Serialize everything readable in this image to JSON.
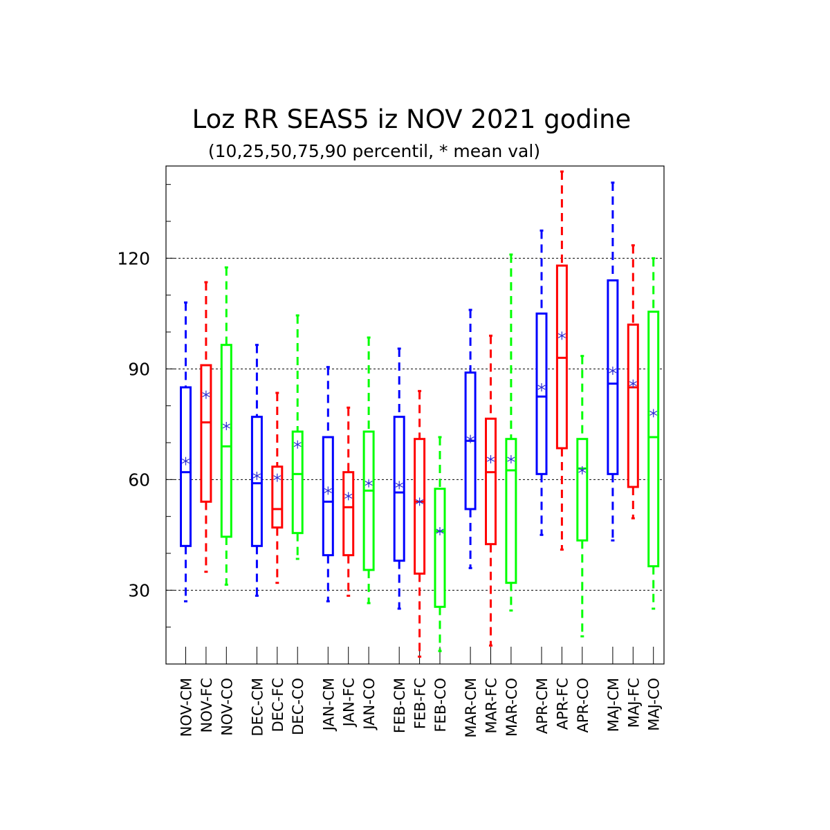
{
  "chart_data": {
    "type": "box",
    "title": "Loz RR SEAS5 iz NOV 2021 godine",
    "subtitle": "(10,25,50,75,90 percentil, * mean val)",
    "xlabel": "",
    "ylabel": "",
    "ylim": [
      10,
      145
    ],
    "yticks": [
      30,
      60,
      90,
      120
    ],
    "ytick_labels": [
      "30",
      "60",
      "90",
      "120"
    ],
    "grid": "horizontal dotted at major ticks",
    "colors": {
      "CM": "#0000ff",
      "FC": "#ff0000",
      "CO": "#00ff00",
      "mean_marker": "#2a2ad0"
    },
    "boxes": [
      {
        "label": "NOV-CM",
        "type": "CM",
        "p10": 27,
        "p25": 42,
        "p50": 62,
        "p75": 85,
        "p90": 108,
        "mean": 65
      },
      {
        "label": "NOV-FC",
        "type": "FC",
        "p10": 35,
        "p25": 54,
        "p50": 75.5,
        "p75": 91,
        "p90": 113.5,
        "mean": 83
      },
      {
        "label": "NOV-CO",
        "type": "CO",
        "p10": 31.5,
        "p25": 44.5,
        "p50": 69,
        "p75": 96.5,
        "p90": 117.5,
        "mean": 74.5
      },
      {
        "label": "DEC-CM",
        "type": "CM",
        "p10": 28.5,
        "p25": 42,
        "p50": 59,
        "p75": 77,
        "p90": 96.5,
        "mean": 61
      },
      {
        "label": "DEC-FC",
        "type": "FC",
        "p10": 32,
        "p25": 47,
        "p50": 52,
        "p75": 63.5,
        "p90": 83.5,
        "mean": 60.5
      },
      {
        "label": "DEC-CO",
        "type": "CO",
        "p10": 38.5,
        "p25": 45.5,
        "p50": 61.5,
        "p75": 73,
        "p90": 104.5,
        "mean": 69.5
      },
      {
        "label": "JAN-CM",
        "type": "CM",
        "p10": 27,
        "p25": 39.5,
        "p50": 54,
        "p75": 71.5,
        "p90": 90.5,
        "mean": 57
      },
      {
        "label": "JAN-FC",
        "type": "FC",
        "p10": 28.5,
        "p25": 39.5,
        "p50": 52.5,
        "p75": 62,
        "p90": 79.5,
        "mean": 55.5
      },
      {
        "label": "JAN-CO",
        "type": "CO",
        "p10": 26.5,
        "p25": 35.5,
        "p50": 57,
        "p75": 73,
        "p90": 98.5,
        "mean": 59
      },
      {
        "label": "FEB-CM",
        "type": "CM",
        "p10": 25,
        "p25": 38,
        "p50": 56.5,
        "p75": 77,
        "p90": 95.5,
        "mean": 58.5
      },
      {
        "label": "FEB-FC",
        "type": "FC",
        "p10": 12,
        "p25": 34.5,
        "p50": 54,
        "p75": 71,
        "p90": 84,
        "mean": 54
      },
      {
        "label": "FEB-CO",
        "type": "CO",
        "p10": 13.5,
        "p25": 25.5,
        "p50": 46,
        "p75": 57.5,
        "p90": 71.5,
        "mean": 46
      },
      {
        "label": "MAR-CM",
        "type": "CM",
        "p10": 36,
        "p25": 52,
        "p50": 70.5,
        "p75": 89,
        "p90": 106,
        "mean": 71
      },
      {
        "label": "MAR-FC",
        "type": "FC",
        "p10": 15,
        "p25": 42.5,
        "p50": 62,
        "p75": 76.5,
        "p90": 99,
        "mean": 65.5
      },
      {
        "label": "MAR-CO",
        "type": "CO",
        "p10": 24.5,
        "p25": 32,
        "p50": 62.5,
        "p75": 71,
        "p90": 121,
        "mean": 65.5
      },
      {
        "label": "APR-CM",
        "type": "CM",
        "p10": 45,
        "p25": 61.5,
        "p50": 82.5,
        "p75": 105,
        "p90": 127.5,
        "mean": 85
      },
      {
        "label": "APR-FC",
        "type": "FC",
        "p10": 41,
        "p25": 68.5,
        "p50": 93,
        "p75": 118,
        "p90": 143.5,
        "mean": 99
      },
      {
        "label": "APR-CO",
        "type": "CO",
        "p10": 17.5,
        "p25": 43.5,
        "p50": 63,
        "p75": 71,
        "p90": 93.5,
        "mean": 62.5
      },
      {
        "label": "MAJ-CM",
        "type": "CM",
        "p10": 43.5,
        "p25": 61.5,
        "p50": 86,
        "p75": 114,
        "p90": 140.5,
        "mean": 89.5
      },
      {
        "label": "MAJ-FC",
        "type": "FC",
        "p10": 49.5,
        "p25": 58,
        "p50": 85,
        "p75": 102,
        "p90": 123.5,
        "mean": 86
      },
      {
        "label": "MAJ-CO",
        "type": "CO",
        "p10": 25,
        "p25": 36.5,
        "p50": 71.5,
        "p75": 105.5,
        "p90": 120,
        "mean": 78
      }
    ]
  }
}
